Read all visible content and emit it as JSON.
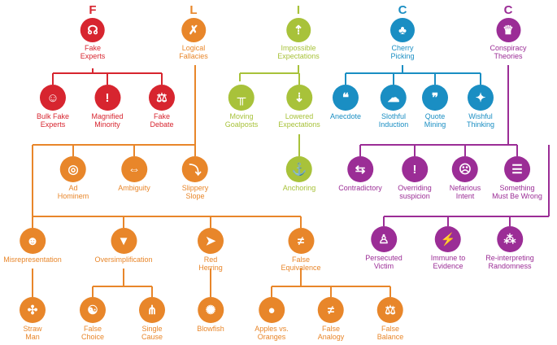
{
  "colors": {
    "red": "#d7252f",
    "orange": "#e8862a",
    "green": "#a8c23a",
    "blue": "#1a8ec3",
    "purple": "#9b2d96"
  },
  "heads": {
    "f": {
      "letter": "F",
      "line1": "Fake",
      "line2": "Experts",
      "icon": "speaking-head-icon"
    },
    "l": {
      "letter": "L",
      "line1": "Logical",
      "line2": "Fallacies",
      "icon": "speech-bubble-x-icon"
    },
    "i": {
      "letter": "I",
      "line1": "Impossible",
      "line2": "Expectations",
      "icon": "goalpost-icon"
    },
    "c1": {
      "letter": "C",
      "line1": "Cherry",
      "line2": "Picking",
      "icon": "cherries-icon"
    },
    "c2": {
      "letter": "C",
      "line1": "Conspiracy",
      "line2": "Theories",
      "icon": "tinfoil-hat-icon"
    }
  },
  "red": {
    "bulk": {
      "line1": "Bulk Fake",
      "line2": "Experts"
    },
    "magnified": {
      "line1": "Magnified",
      "line2": "Minority"
    },
    "debate": {
      "line1": "Fake",
      "line2": "Debate"
    }
  },
  "green": {
    "moving": {
      "line1": "Moving",
      "line2": "Goalposts"
    },
    "lowered": {
      "line1": "Lowered",
      "line2": "Expectations"
    },
    "anchoring": {
      "line1": "Anchoring",
      "line2": ""
    }
  },
  "blue": {
    "anecdote": {
      "line1": "Anecdote",
      "line2": ""
    },
    "slothful": {
      "line1": "Slothful",
      "line2": "Induction"
    },
    "quote": {
      "line1": "Quote",
      "line2": "Mining"
    },
    "wishful": {
      "line1": "Wishful",
      "line2": "Thinking"
    }
  },
  "purple": {
    "contradictory": {
      "line1": "Contradictory",
      "line2": ""
    },
    "overriding": {
      "line1": "Overriding",
      "line2": "suspicion"
    },
    "nefarious": {
      "line1": "Nefarious",
      "line2": "Intent"
    },
    "wrong": {
      "line1": "Something",
      "line2": "Must Be Wrong"
    },
    "persecuted": {
      "line1": "Persecuted",
      "line2": "Victim"
    },
    "immune": {
      "line1": "Immune to",
      "line2": "Evidence"
    },
    "reinterpreting": {
      "line1": "Re-interpreting",
      "line2": "Randomness"
    }
  },
  "orange": {
    "adhominem": {
      "line1": "Ad",
      "line2": "Hominem"
    },
    "ambiguity": {
      "line1": "Ambiguity",
      "line2": ""
    },
    "slippery": {
      "line1": "Slippery",
      "line2": "Slope"
    },
    "misrep": {
      "line1": "Misrepresentation",
      "line2": ""
    },
    "oversimp": {
      "line1": "Oversimplification",
      "line2": ""
    },
    "redherring": {
      "line1": "Red",
      "line2": "Herring"
    },
    "falseeq": {
      "line1": "False",
      "line2": "Equivalence"
    },
    "straw": {
      "line1": "Straw",
      "line2": "Man"
    },
    "falsechoice": {
      "line1": "False",
      "line2": "Choice"
    },
    "single": {
      "line1": "Single",
      "line2": "Cause"
    },
    "blowfish": {
      "line1": "Blowfish",
      "line2": ""
    },
    "apples": {
      "line1": "Apples vs.",
      "line2": "Oranges"
    },
    "analogy": {
      "line1": "False",
      "line2": "Analogy"
    },
    "balance": {
      "line1": "False",
      "line2": "Balance"
    }
  }
}
